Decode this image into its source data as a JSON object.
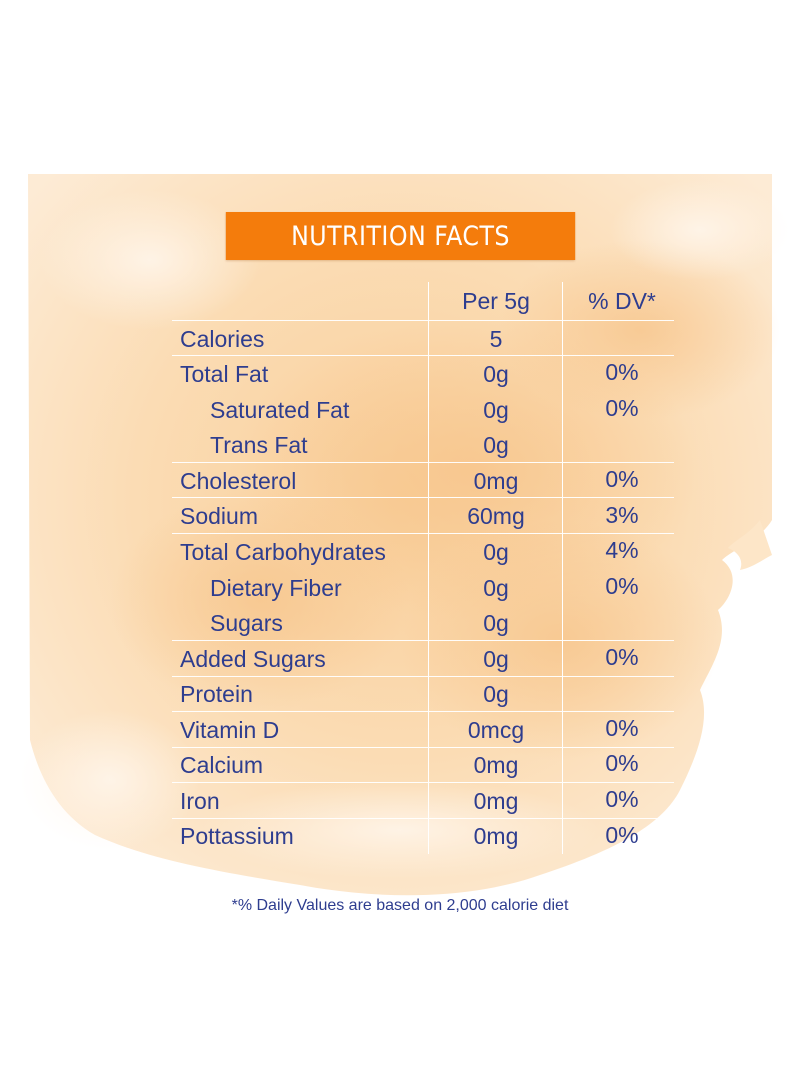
{
  "title": "NUTRITION FACTS",
  "columns": {
    "amount": "Per 5g",
    "dv": "% DV*"
  },
  "rows": [
    {
      "label": "Calories",
      "amount": "5",
      "dv": "",
      "indent": false
    },
    {
      "label": "Total Fat",
      "amount": "0g",
      "dv": "0%",
      "indent": false
    },
    {
      "label": "Saturated Fat",
      "amount": "0g",
      "dv": "0%",
      "indent": true
    },
    {
      "label": "Trans Fat",
      "amount": "0g",
      "dv": "",
      "indent": true
    },
    {
      "label": "Cholesterol",
      "amount": "0mg",
      "dv": "0%",
      "indent": false
    },
    {
      "label": "Sodium",
      "amount": "60mg",
      "dv": "3%",
      "indent": false
    },
    {
      "label": "Total Carbohydrates",
      "amount": "0g",
      "dv": "4%",
      "indent": false
    },
    {
      "label": "Dietary Fiber",
      "amount": "0g",
      "dv": "0%",
      "indent": true
    },
    {
      "label": "Sugars",
      "amount": "0g",
      "dv": "",
      "indent": true
    },
    {
      "label": "Added Sugars",
      "amount": "0g",
      "dv": "0%",
      "indent": false
    },
    {
      "label": "Protein",
      "amount": "0g",
      "dv": "",
      "indent": false
    },
    {
      "label": "Vitamin D",
      "amount": "0mcg",
      "dv": "0%",
      "indent": false
    },
    {
      "label": "Calcium",
      "amount": "0mg",
      "dv": "0%",
      "indent": false
    },
    {
      "label": "Iron",
      "amount": "0mg",
      "dv": "0%",
      "indent": false
    },
    {
      "label": "Pottassium",
      "amount": "0mg",
      "dv": "0%",
      "indent": false
    }
  ],
  "footnote": "*% Daily Values are based on 2,000 calorie diet",
  "colors": {
    "banner": "#f47c0c",
    "text": "#2e3d8f",
    "wash": "#fbd9ad"
  }
}
